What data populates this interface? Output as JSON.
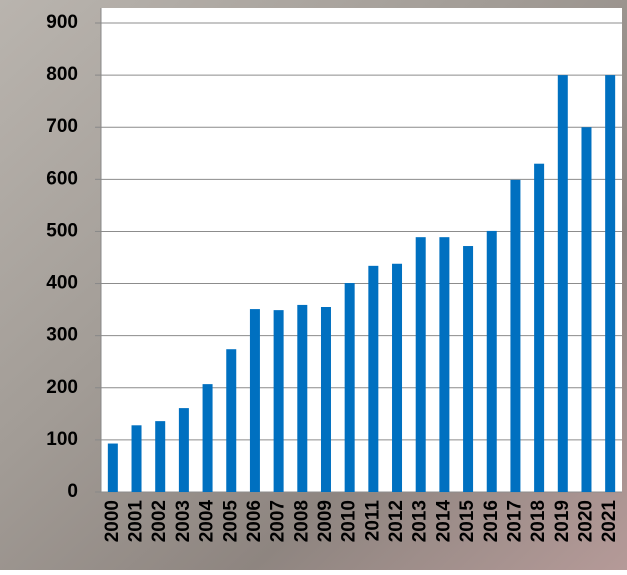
{
  "chart_data": {
    "type": "bar",
    "categories": [
      "2000",
      "2001",
      "2002",
      "2003",
      "2004",
      "2005",
      "2006",
      "2007",
      "2008",
      "2009",
      "2010",
      "2011",
      "2012",
      "2013",
      "2014",
      "2015",
      "2016",
      "2017",
      "2018",
      "2019",
      "2020",
      "2021"
    ],
    "values": [
      93,
      128,
      136,
      161,
      207,
      274,
      351,
      349,
      359,
      355,
      401,
      434,
      438,
      489,
      489,
      472,
      501,
      599,
      630,
      800,
      700,
      800
    ],
    "color": "#0070c0",
    "ylim": [
      0,
      900
    ],
    "yticks": [
      0,
      100,
      200,
      300,
      400,
      500,
      600,
      700,
      800,
      900
    ],
    "grid": true
  }
}
